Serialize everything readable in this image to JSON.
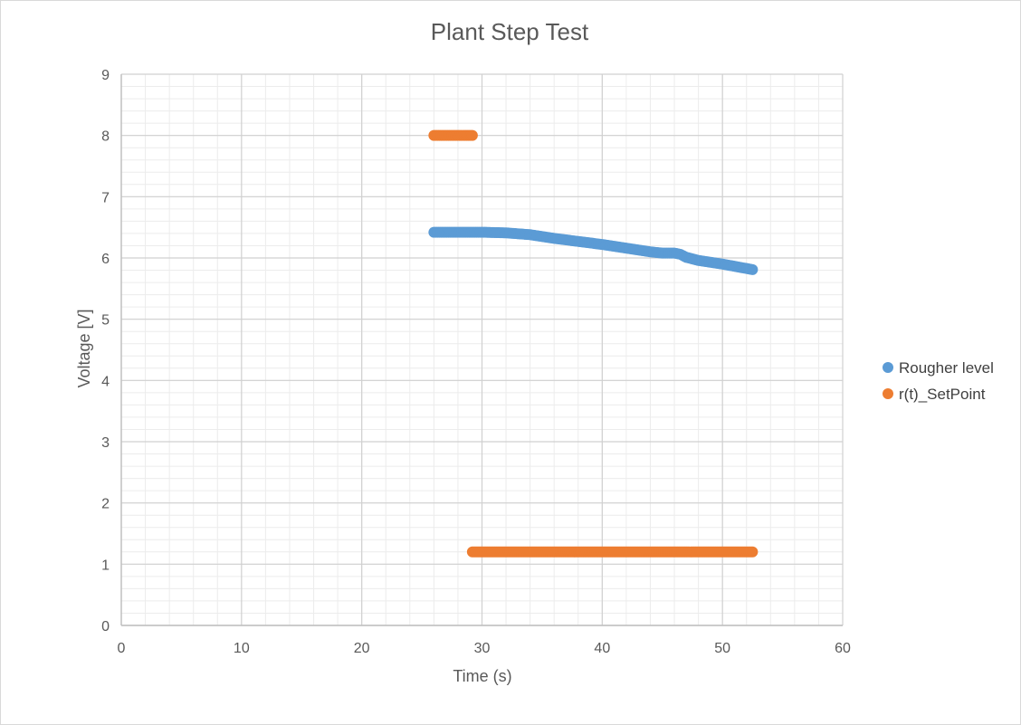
{
  "chart_data": {
    "type": "scatter",
    "title": "Plant Step Test",
    "xlabel": "Time (s)",
    "ylabel": "Voltage [V]",
    "xlim": [
      0,
      60
    ],
    "ylim": [
      0,
      9
    ],
    "x_ticks": [
      0,
      10,
      20,
      30,
      40,
      50,
      60
    ],
    "y_ticks": [
      0,
      1,
      2,
      3,
      4,
      5,
      6,
      7,
      8,
      9
    ],
    "x_tick_labels": [
      "0",
      "10",
      "20",
      "30",
      "40",
      "50",
      "60"
    ],
    "y_tick_labels": [
      "0",
      "1",
      "2",
      "3",
      "4",
      "5",
      "6",
      "7",
      "8",
      "9"
    ],
    "grid": true,
    "minor_grid": true,
    "legend_position": "right",
    "series": [
      {
        "name": "Rougher level",
        "color": "#5b9bd5",
        "x": [
          26,
          28,
          30,
          32,
          34,
          36,
          38,
          40,
          42,
          44,
          45,
          46,
          46.5,
          47,
          48,
          50,
          52.5
        ],
        "y": [
          6.42,
          6.42,
          6.42,
          6.41,
          6.38,
          6.32,
          6.27,
          6.22,
          6.16,
          6.1,
          6.08,
          6.08,
          6.06,
          6.01,
          5.96,
          5.9,
          5.81
        ]
      },
      {
        "name": "r(t)_SetPoint",
        "color": "#ed7d31",
        "segments": [
          {
            "x": [
              26,
              29.2
            ],
            "y": [
              8.0,
              8.0
            ]
          },
          {
            "x": [
              29.2,
              52.5
            ],
            "y": [
              1.2,
              1.2
            ]
          }
        ]
      }
    ]
  }
}
